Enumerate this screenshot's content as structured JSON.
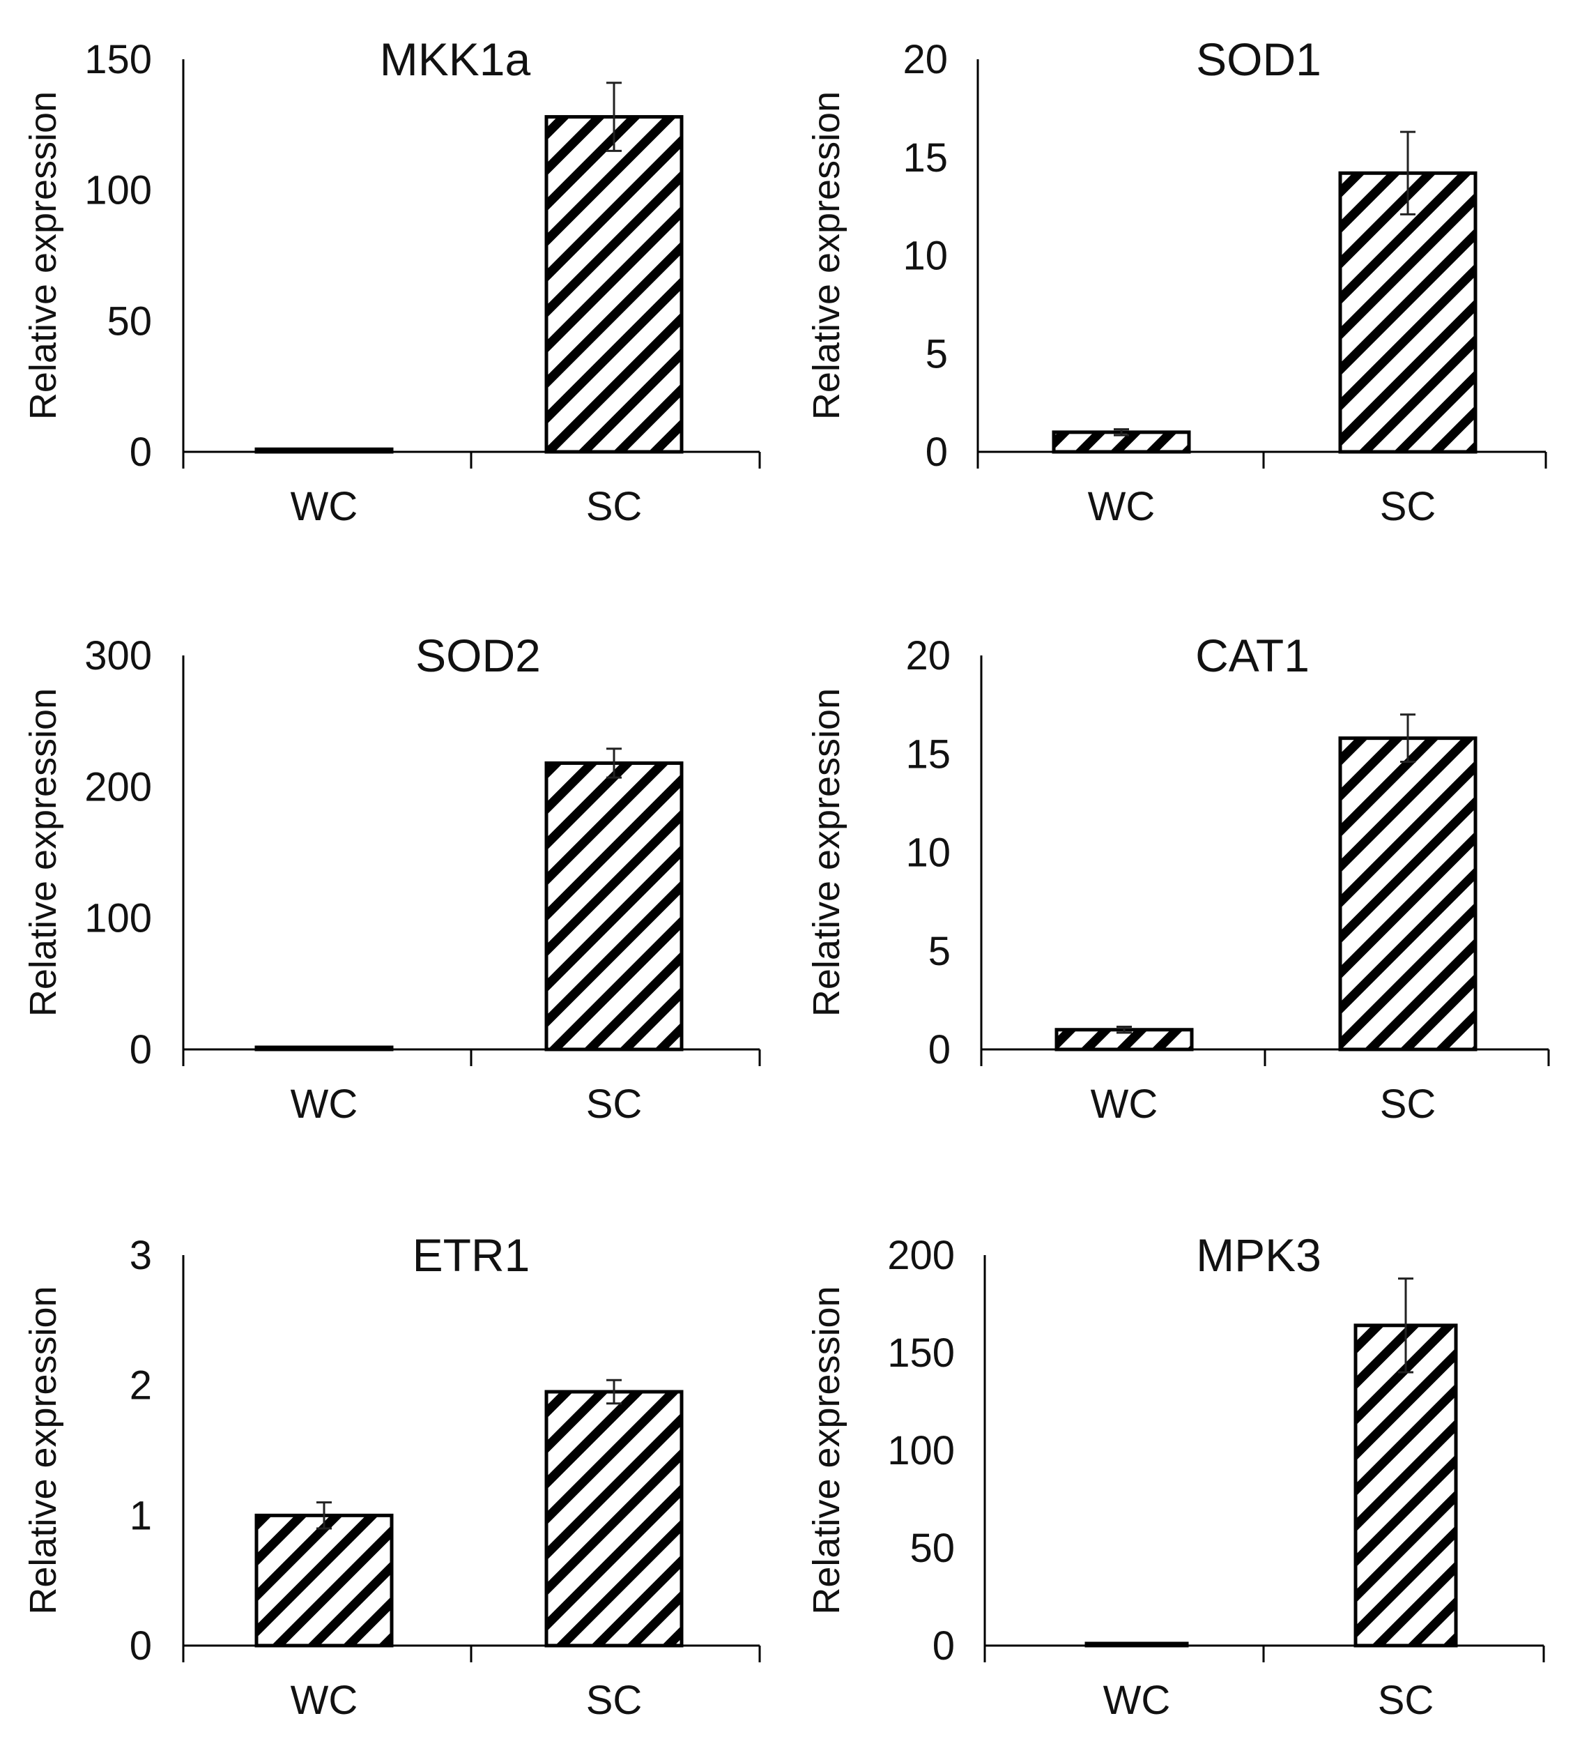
{
  "figure": {
    "background": "#ffffff",
    "bar_pattern": "diagonal-hatch"
  },
  "chart_data": [
    {
      "type": "bar",
      "title": "MKK1a",
      "ylabel": "Relative expression",
      "xlabel": "",
      "categories": [
        "WC",
        "SC"
      ],
      "values": [
        1,
        128
      ],
      "errors": [
        0.3,
        13
      ],
      "ylim": [
        0,
        150
      ],
      "yticks": [
        0,
        50,
        100,
        150
      ],
      "grid": false
    },
    {
      "type": "bar",
      "title": "SOD1",
      "ylabel": "Relative expression",
      "xlabel": "",
      "categories": [
        "WC",
        "SC"
      ],
      "values": [
        1,
        14.2
      ],
      "errors": [
        0.15,
        2.1
      ],
      "ylim": [
        0,
        20
      ],
      "yticks": [
        0,
        5,
        10,
        15,
        20
      ],
      "grid": false
    },
    {
      "type": "bar",
      "title": "SOD2",
      "ylabel": "Relative expression",
      "xlabel": "",
      "categories": [
        "WC",
        "SC"
      ],
      "values": [
        1,
        218
      ],
      "errors": [
        0.3,
        11
      ],
      "ylim": [
        0,
        300
      ],
      "yticks": [
        0,
        100,
        200,
        300
      ],
      "grid": false
    },
    {
      "type": "bar",
      "title": "CAT1",
      "ylabel": "Relative expression",
      "xlabel": "",
      "categories": [
        "WC",
        "SC"
      ],
      "values": [
        1,
        15.8
      ],
      "errors": [
        0.15,
        1.2
      ],
      "ylim": [
        0,
        20
      ],
      "yticks": [
        0,
        5,
        10,
        15,
        20
      ],
      "grid": false
    },
    {
      "type": "bar",
      "title": "ETR1",
      "ylabel": "Relative expression",
      "xlabel": "",
      "categories": [
        "WC",
        "SC"
      ],
      "values": [
        1,
        1.95
      ],
      "errors": [
        0.1,
        0.09
      ],
      "ylim": [
        0,
        3
      ],
      "yticks": [
        0,
        1,
        2,
        3
      ],
      "grid": false
    },
    {
      "type": "bar",
      "title": "MPK3",
      "ylabel": "Relative expression",
      "xlabel": "",
      "categories": [
        "WC",
        "SC"
      ],
      "values": [
        1,
        164
      ],
      "errors": [
        0.3,
        24
      ],
      "ylim": [
        0,
        200
      ],
      "yticks": [
        0,
        50,
        100,
        150,
        200
      ],
      "grid": false
    }
  ]
}
